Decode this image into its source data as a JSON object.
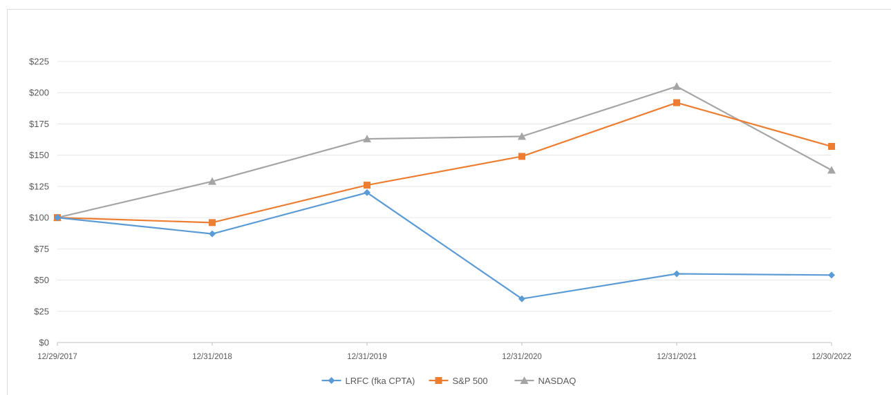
{
  "chart_data": {
    "type": "line",
    "title": "",
    "xlabel": "",
    "ylabel": "",
    "categories": [
      "12/29/2017",
      "12/31/2018",
      "12/31/2019",
      "12/31/2020",
      "12/31/2021",
      "12/30/2022"
    ],
    "y_ticks": [
      "$0",
      "$25",
      "$50",
      "$75",
      "$100",
      "$125",
      "$150",
      "$175",
      "$200",
      "$225"
    ],
    "ylim": [
      0,
      225
    ],
    "grid": true,
    "legend_position": "bottom",
    "series": [
      {
        "name": "LRFC (fka CPTA)",
        "color": "#5b9bd5",
        "marker": "diamond",
        "values": [
          100,
          87,
          120,
          35,
          55,
          54
        ]
      },
      {
        "name": "S&P 500",
        "color": "#ed7d31",
        "marker": "square",
        "values": [
          100,
          96,
          126,
          149,
          192,
          157
        ]
      },
      {
        "name": "NASDAQ",
        "color": "#a5a5a5",
        "marker": "triangle",
        "values": [
          100,
          129,
          163,
          165,
          205,
          138
        ]
      }
    ]
  }
}
